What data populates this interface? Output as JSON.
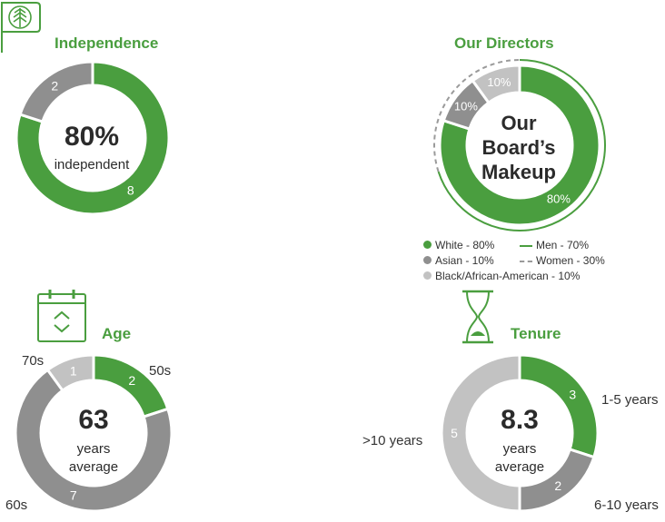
{
  "colors": {
    "green": "#4a9e3f",
    "darkgray": "#8f8f8f",
    "lightgray": "#c2c2c2",
    "dashgray": "#9a9a9a",
    "text": "#2b2b2b"
  },
  "icons": {
    "logo": "tree-flag-icon",
    "age": "calendar-icon",
    "tenure": "hourglass-icon"
  },
  "chart_data": [
    {
      "type": "pie",
      "id": "independence",
      "title": "Independence",
      "center_big": "80%",
      "center_small": "independent",
      "slices": [
        {
          "name": "",
          "value": 8,
          "label": "8",
          "color": "#4a9e3f"
        },
        {
          "name": "",
          "value": 2,
          "label": "2",
          "color": "#8f8f8f"
        }
      ]
    },
    {
      "type": "pie",
      "id": "directors",
      "title": "Our Directors",
      "center_lines": [
        "Our",
        "Board’s",
        "Makeup"
      ],
      "slices": [
        {
          "name": "White - 80%",
          "value": 80,
          "label": "80%",
          "color": "#4a9e3f"
        },
        {
          "name": "Asian - 10%",
          "value": 10,
          "label": "10%",
          "color": "#8f8f8f"
        },
        {
          "name": "Black/African-American - 10%",
          "value": 10,
          "label": "10%",
          "color": "#c2c2c2"
        }
      ],
      "outer_ring": [
        {
          "name": "Men - 70%",
          "value": 70,
          "style": "solid"
        },
        {
          "name": "Women - 30%",
          "value": 30,
          "style": "dashed"
        }
      ],
      "legend": {
        "white": "White - 80%",
        "men": "Men - 70%",
        "asian": "Asian - 10%",
        "women": "Women - 30%",
        "black": "Black/African-American - 10%"
      }
    },
    {
      "type": "pie",
      "id": "age",
      "title": "Age",
      "center_big": "63",
      "center_line2": "years",
      "center_line3": "average",
      "slices": [
        {
          "name": "50s",
          "value": 2,
          "label": "2",
          "color": "#4a9e3f"
        },
        {
          "name": "60s",
          "value": 7,
          "label": "7",
          "color": "#8f8f8f"
        },
        {
          "name": "70s",
          "value": 1,
          "label": "1",
          "color": "#c2c2c2"
        }
      ]
    },
    {
      "type": "pie",
      "id": "tenure",
      "title": "Tenure",
      "center_big": "8.3",
      "center_line2": "years",
      "center_line3": "average",
      "slices": [
        {
          "name": "1-5 years",
          "value": 3,
          "label": "3",
          "color": "#4a9e3f"
        },
        {
          "name": "6-10 years",
          "value": 2,
          "label": "2",
          "color": "#8f8f8f"
        },
        {
          "name": ">10 years",
          "value": 5,
          "label": "5",
          "color": "#c2c2c2"
        }
      ]
    }
  ]
}
